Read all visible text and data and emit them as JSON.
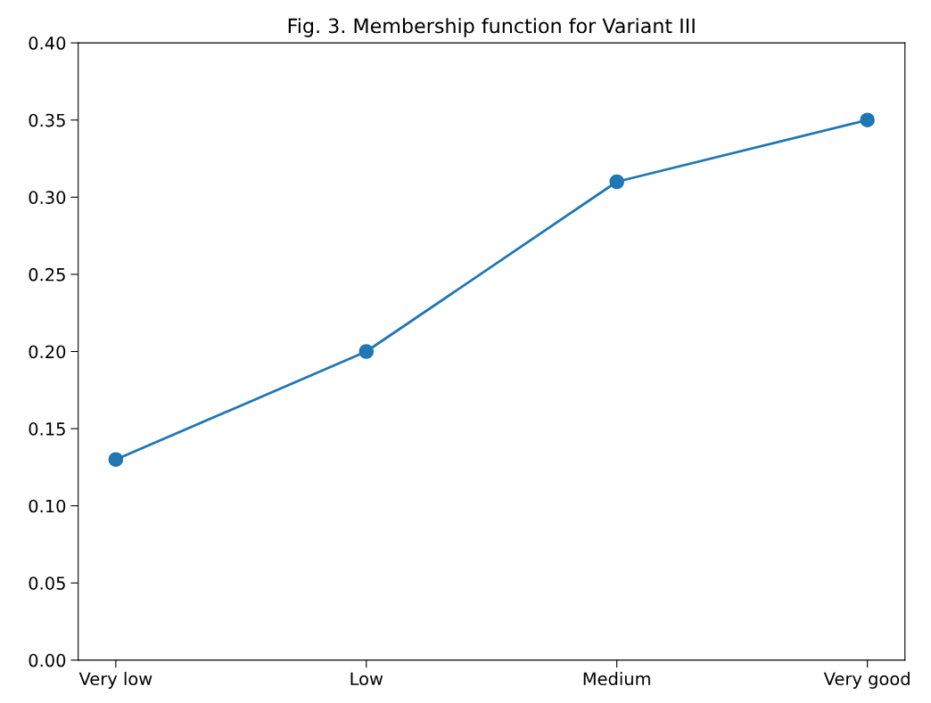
{
  "chart_data": {
    "type": "line",
    "title": "Fig. 3. Membership function for Variant III",
    "categories": [
      "Very low",
      "Low",
      "Medium",
      "Very good"
    ],
    "series": [
      {
        "color": "#1f77b4",
        "values": [
          0.13,
          0.2,
          0.31,
          0.35
        ]
      }
    ],
    "ylim": [
      0,
      0.4
    ],
    "yticks": [
      {
        "value": 0,
        "label": "0.00"
      },
      {
        "value": 0.05,
        "label": "0.05"
      },
      {
        "value": 0.1,
        "label": "0.10"
      },
      {
        "value": 0.15,
        "label": "0.15"
      },
      {
        "value": 0.2,
        "label": "0.20"
      },
      {
        "value": 0.25,
        "label": "0.25"
      },
      {
        "value": 0.3,
        "label": "0.30"
      },
      {
        "value": 0.35,
        "label": "0.35"
      },
      {
        "value": 0.4,
        "label": "0.40"
      }
    ],
    "marker": "circle",
    "line_style": "solid",
    "grid": false
  }
}
